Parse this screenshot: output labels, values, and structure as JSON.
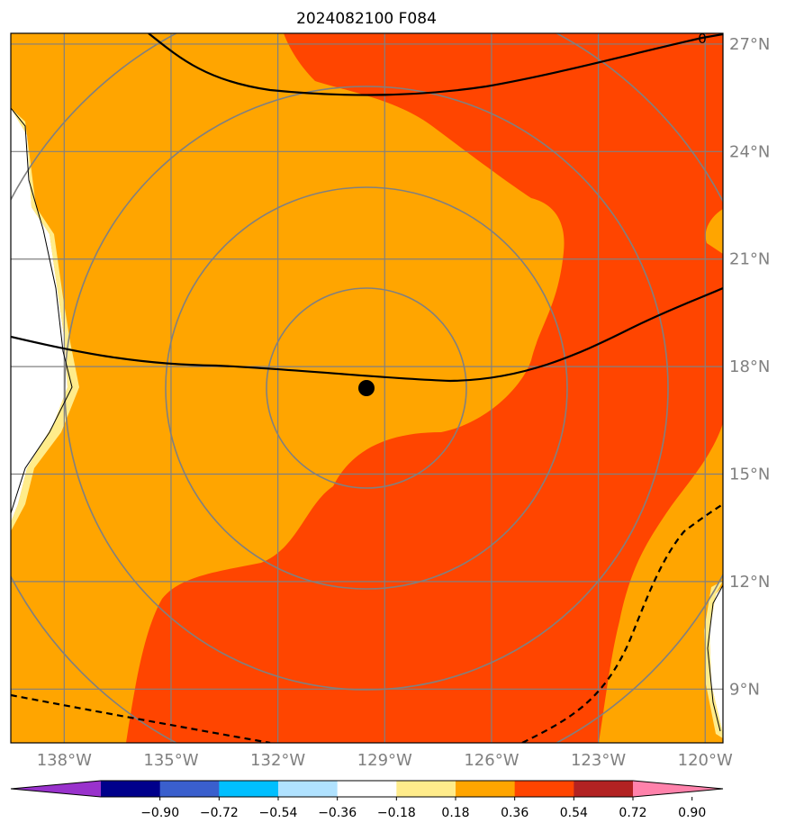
{
  "chart_data": {
    "type": "heatmap",
    "title": "2024082100 F084",
    "x_ticks": [
      "138°W",
      "135°W",
      "132°W",
      "129°W",
      "126°W",
      "123°W",
      "120°W"
    ],
    "x_values": [
      -138,
      -135,
      -132,
      -129,
      -126,
      -123,
      -120
    ],
    "y_ticks": [
      "27°N",
      "24°N",
      "21°N",
      "18°N",
      "15°N",
      "12°N",
      "9°N"
    ],
    "y_values": [
      27,
      24,
      21,
      18,
      15,
      12,
      9
    ],
    "xlim": [
      -139.5,
      -119.5
    ],
    "ylim": [
      7.5,
      27.3
    ],
    "storm_center": {
      "lon": -129.5,
      "lat": 17.4
    },
    "range_rings_deg": [
      2.7,
      5.5,
      8.3
    ],
    "contour_labels": [
      "0"
    ],
    "colorbar": {
      "ticks": [
        "−0.90",
        "−0.72",
        "−0.54",
        "−0.36",
        "−0.18",
        "0.18",
        "0.36",
        "0.54",
        "0.72",
        "0.90"
      ],
      "colors": [
        "#9932cc",
        "#00008b",
        "#3a5fcd",
        "#00bfff",
        "#b0e2ff",
        "#ffffff",
        "#ffec8b",
        "#ffa500",
        "#ff4500",
        "#b22222",
        "#ff82ab"
      ]
    }
  }
}
